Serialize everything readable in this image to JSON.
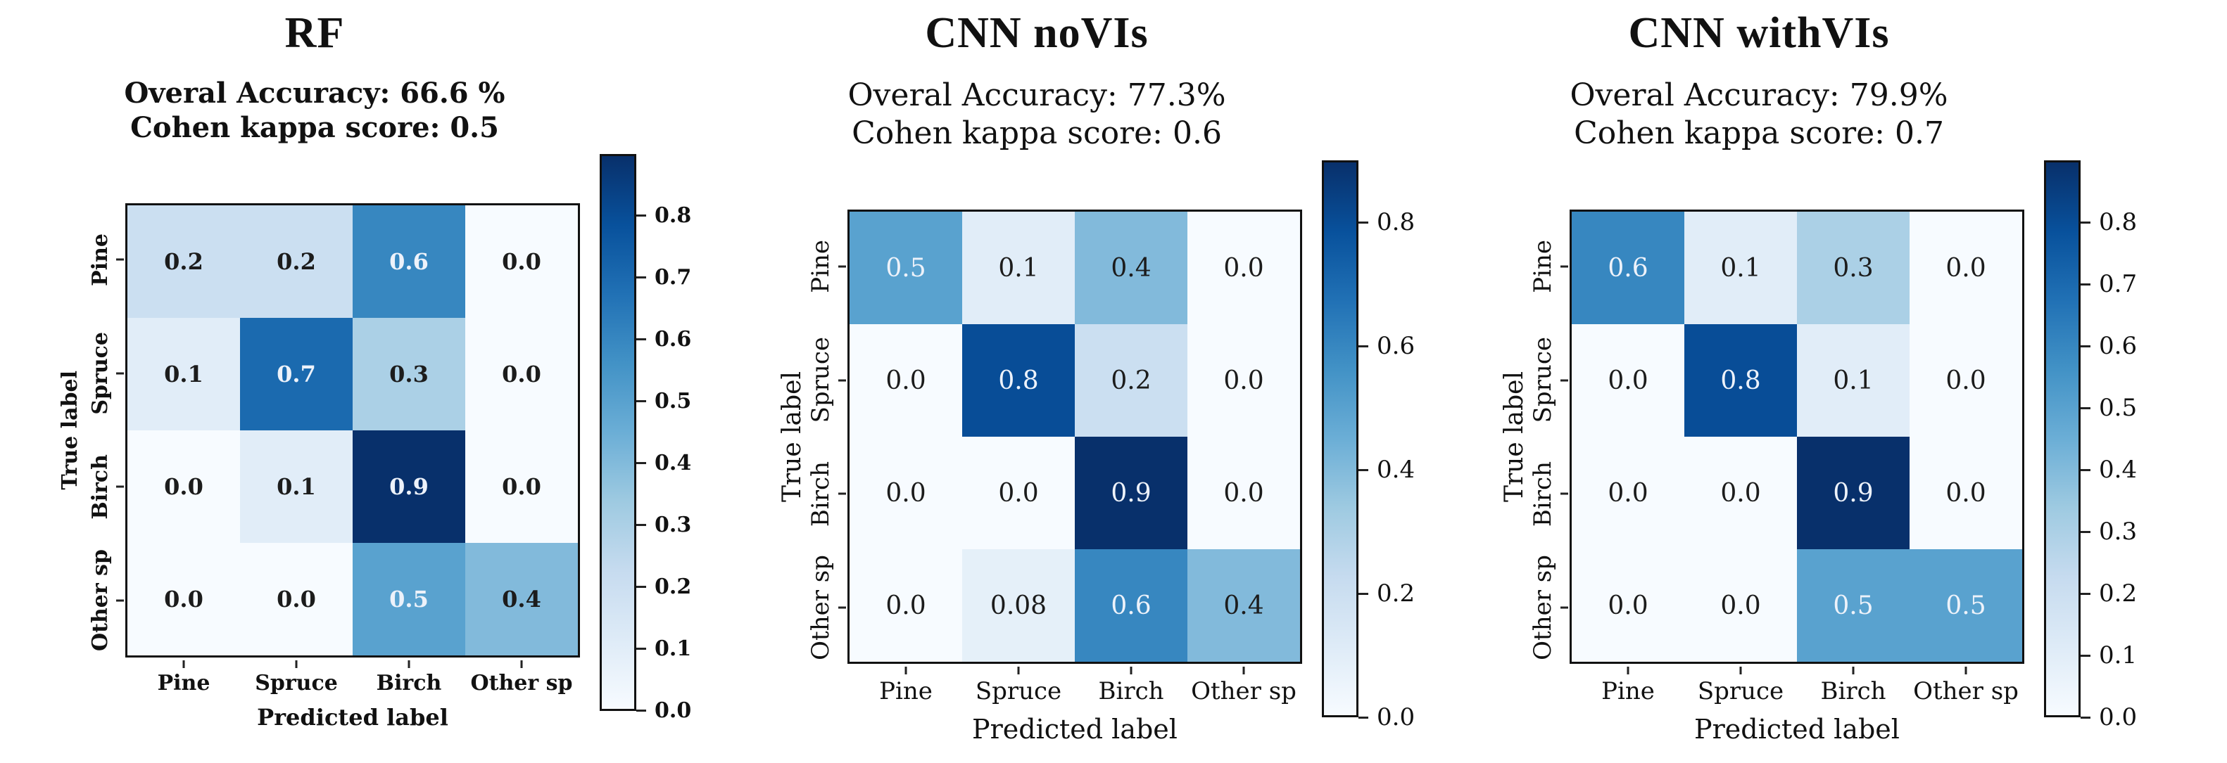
{
  "page": {
    "background": "#ffffff"
  },
  "chart_data": [
    {
      "type": "heatmap",
      "title": "RF",
      "subtitle_line1": "Overal Accuracy: 66.6 %",
      "subtitle_line2": "Cohen kappa score: 0.5",
      "xlabel": "Predicted label",
      "ylabel": "True label",
      "categories": [
        "Pine",
        "Spruce",
        "Birch",
        "Other sp"
      ],
      "matrix": [
        [
          "0.2",
          "0.2",
          "0.6",
          "0.0"
        ],
        [
          "0.1",
          "0.7",
          "0.3",
          "0.0"
        ],
        [
          "0.0",
          "0.1",
          "0.9",
          "0.0"
        ],
        [
          "0.0",
          "0.0",
          "0.5",
          "0.4"
        ]
      ],
      "vmax": 0.9,
      "colormap": "Blues",
      "colorbar_ticks": [
        "0.8",
        "0.7",
        "0.6",
        "0.5",
        "0.4",
        "0.3",
        "0.2",
        "0.1",
        "0.0"
      ],
      "legend_position": "right",
      "grid": false
    },
    {
      "type": "heatmap",
      "title": "CNN noVIs",
      "subtitle_line1": "Overal Accuracy: 77.3%",
      "subtitle_line2": "Cohen kappa score: 0.6",
      "xlabel": "Predicted label",
      "ylabel": "True label",
      "categories": [
        "Pine",
        "Spruce",
        "Birch",
        "Other sp"
      ],
      "matrix": [
        [
          "0.5",
          "0.1",
          "0.4",
          "0.0"
        ],
        [
          "0.0",
          "0.8",
          "0.2",
          "0.0"
        ],
        [
          "0.0",
          "0.0",
          "0.9",
          "0.0"
        ],
        [
          "0.0",
          "0.08",
          "0.6",
          "0.4"
        ]
      ],
      "vmax": 0.9,
      "colormap": "Blues",
      "colorbar_ticks": [
        "0.8",
        "0.6",
        "0.4",
        "0.2",
        "0.0"
      ],
      "legend_position": "right",
      "grid": false
    },
    {
      "type": "heatmap",
      "title": "CNN withVIs",
      "subtitle_line1": "Overal Accuracy: 79.9%",
      "subtitle_line2": "Cohen kappa score: 0.7",
      "xlabel": "Predicted label",
      "ylabel": "True label",
      "categories": [
        "Pine",
        "Spruce",
        "Birch",
        "Other sp"
      ],
      "matrix": [
        [
          "0.6",
          "0.1",
          "0.3",
          "0.0"
        ],
        [
          "0.0",
          "0.8",
          "0.1",
          "0.0"
        ],
        [
          "0.0",
          "0.0",
          "0.9",
          "0.0"
        ],
        [
          "0.0",
          "0.0",
          "0.5",
          "0.5"
        ]
      ],
      "vmax": 0.9,
      "colormap": "Blues",
      "colorbar_ticks": [
        "0.8",
        "0.7",
        "0.6",
        "0.5",
        "0.4",
        "0.3",
        "0.2",
        "0.1",
        "0.0"
      ],
      "legend_position": "right",
      "grid": false
    }
  ]
}
